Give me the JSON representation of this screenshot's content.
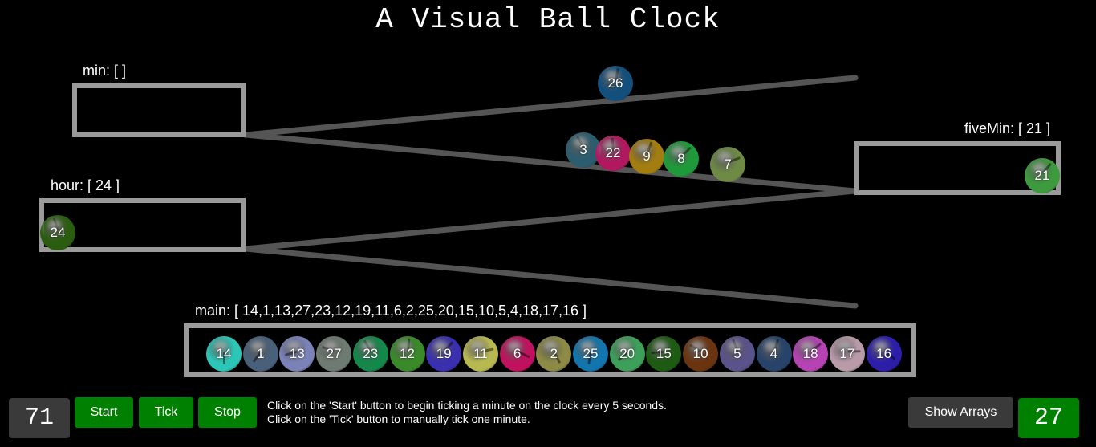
{
  "title": "A Visual Ball Clock",
  "labels": {
    "min": "min: [  ]",
    "hour": "hour: [ 24 ]",
    "fiveMin": "fiveMin: [ 21 ]",
    "main": "main: [ 14,1,13,27,23,12,19,11,6,2,25,20,15,10,5,4,18,17,16 ]"
  },
  "colors": {
    "rail": "#555555",
    "box": "#9a9a9a",
    "button_green": "#008000",
    "counter_bg": "#3a3a3a"
  },
  "balls": {
    "moving": {
      "id": "26",
      "color": "#134f7d"
    },
    "rolling": [
      {
        "id": "3",
        "color": "#2c5d6e"
      },
      {
        "id": "22",
        "color": "#b0195f"
      },
      {
        "id": "9",
        "color": "#a37d10"
      },
      {
        "id": "8",
        "color": "#1e9a3a"
      },
      {
        "id": "7",
        "color": "#6e8a45"
      }
    ],
    "fiveMin": [
      {
        "id": "21",
        "color": "#3d9a3d"
      }
    ],
    "hour": [
      {
        "id": "24",
        "color": "#2a5d10"
      }
    ],
    "main": [
      {
        "id": "14",
        "color": "#2cc6b7"
      },
      {
        "id": "1",
        "color": "#48607a"
      },
      {
        "id": "13",
        "color": "#7a82b8"
      },
      {
        "id": "27",
        "color": "#6f7a72"
      },
      {
        "id": "23",
        "color": "#14874a"
      },
      {
        "id": "12",
        "color": "#3a8a2a"
      },
      {
        "id": "19",
        "color": "#3a2fae"
      },
      {
        "id": "11",
        "color": "#b8b852"
      },
      {
        "id": "6",
        "color": "#c0115e"
      },
      {
        "id": "2",
        "color": "#8c8a45"
      },
      {
        "id": "25",
        "color": "#1275ad"
      },
      {
        "id": "20",
        "color": "#3da05a"
      },
      {
        "id": "15",
        "color": "#1d5a12"
      },
      {
        "id": "10",
        "color": "#6a3410"
      },
      {
        "id": "5",
        "color": "#5a528a"
      },
      {
        "id": "4",
        "color": "#27436a"
      },
      {
        "id": "18",
        "color": "#b642b4"
      },
      {
        "id": "17",
        "color": "#b89aa8"
      },
      {
        "id": "16",
        "color": "#2d1eaa"
      }
    ]
  },
  "controls": {
    "minutes": "71",
    "start": "Start",
    "tick": "Tick",
    "stop": "Stop",
    "instruction1": "Click on the 'Start' button to begin ticking a minute on the clock every 5 seconds.",
    "instruction2": "Click on the 'Tick' button to manually tick one minute.",
    "show_arrays": "Show Arrays",
    "ball_count": "27"
  }
}
